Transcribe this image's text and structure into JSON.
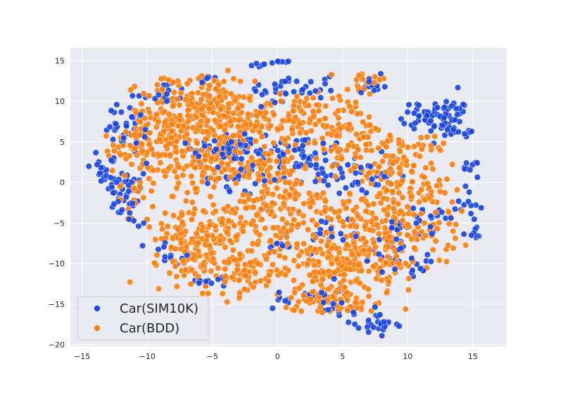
{
  "chart_data": {
    "type": "scatter",
    "title": "",
    "xlabel": "",
    "ylabel": "",
    "xlim": [
      -15.9,
      17.6
    ],
    "ylim": [
      -20.2,
      16.6
    ],
    "xticks": [
      -15,
      -10,
      -5,
      0,
      5,
      10,
      15
    ],
    "yticks": [
      -20,
      -15,
      -10,
      -5,
      0,
      5,
      10,
      15
    ],
    "grid": true,
    "legend_position": "lower-left",
    "series": [
      {
        "name": "Car(SIM10K)",
        "color": "#1a47e0",
        "clusters": [
          {
            "cx": -13.5,
            "cy": 1.5,
            "sx": 0.7,
            "sy": 1.0,
            "n": 22
          },
          {
            "cx": -11.5,
            "cy": -1.5,
            "sx": 0.8,
            "sy": 1.8,
            "n": 45
          },
          {
            "cx": -11.2,
            "cy": 6.5,
            "sx": 1.0,
            "sy": 1.6,
            "n": 40
          },
          {
            "cx": -8.8,
            "cy": 11.0,
            "sx": 1.0,
            "sy": 0.8,
            "n": 18
          },
          {
            "cx": -8.3,
            "cy": -8.7,
            "sx": 0.8,
            "sy": 0.8,
            "n": 10
          },
          {
            "cx": -5.5,
            "cy": 12.8,
            "sx": 0.5,
            "sy": 0.3,
            "n": 8
          },
          {
            "cx": -3.8,
            "cy": 4.3,
            "sx": 2.0,
            "sy": 1.1,
            "n": 55
          },
          {
            "cx": -3.2,
            "cy": 0.3,
            "sx": 1.4,
            "sy": 1.0,
            "n": 22
          },
          {
            "cx": -4.6,
            "cy": -12.2,
            "sx": 0.8,
            "sy": 0.4,
            "n": 12
          },
          {
            "cx": -1.2,
            "cy": 14.5,
            "sx": 0.5,
            "sy": 0.2,
            "n": 6
          },
          {
            "cx": 0.4,
            "cy": 14.9,
            "sx": 0.3,
            "sy": 0.1,
            "n": 6
          },
          {
            "cx": 0.2,
            "cy": 11.2,
            "sx": 1.2,
            "sy": 0.9,
            "n": 28
          },
          {
            "cx": 1.6,
            "cy": 3.0,
            "sx": 1.8,
            "sy": 1.5,
            "n": 55
          },
          {
            "cx": 0.2,
            "cy": -7.8,
            "sx": 0.4,
            "sy": 0.3,
            "n": 8
          },
          {
            "cx": 3.3,
            "cy": 11.6,
            "sx": 0.8,
            "sy": 0.6,
            "n": 10
          },
          {
            "cx": 7.5,
            "cy": 12.0,
            "sx": 0.7,
            "sy": 0.6,
            "n": 10
          },
          {
            "cx": 5.8,
            "cy": 1.0,
            "sx": 1.6,
            "sy": 1.2,
            "n": 45
          },
          {
            "cx": 2.5,
            "cy": -14.2,
            "sx": 1.4,
            "sy": 0.8,
            "n": 24
          },
          {
            "cx": 5.4,
            "cy": -15.6,
            "sx": 1.0,
            "sy": 0.5,
            "n": 14
          },
          {
            "cx": 7.7,
            "cy": -17.5,
            "sx": 0.7,
            "sy": 0.6,
            "n": 26
          },
          {
            "cx": 8.6,
            "cy": -8.5,
            "sx": 0.9,
            "sy": 1.0,
            "n": 22
          },
          {
            "cx": 9.5,
            "cy": -5.2,
            "sx": 0.6,
            "sy": 0.8,
            "n": 10
          },
          {
            "cx": 11.6,
            "cy": 8.2,
            "sx": 1.0,
            "sy": 0.8,
            "n": 42
          },
          {
            "cx": 13.3,
            "cy": 7.5,
            "sx": 0.8,
            "sy": 1.5,
            "n": 40
          },
          {
            "cx": 14.8,
            "cy": 1.8,
            "sx": 0.6,
            "sy": 0.4,
            "n": 9
          },
          {
            "cx": 14.5,
            "cy": -3.0,
            "sx": 0.5,
            "sy": 1.0,
            "n": 12
          },
          {
            "cx": 15.1,
            "cy": -6.3,
            "sx": 0.4,
            "sy": 0.6,
            "n": 8
          },
          {
            "cx": 11.8,
            "cy": -5.0,
            "sx": 0.9,
            "sy": 1.2,
            "n": 18
          },
          {
            "cx": 10.7,
            "cy": -10.5,
            "sx": 0.7,
            "sy": 0.9,
            "n": 12
          },
          {
            "cx": 3.8,
            "cy": -6.0,
            "sx": 1.5,
            "sy": 1.2,
            "n": 20
          }
        ]
      },
      {
        "name": "Car(BDD)",
        "color": "#ff7f0e",
        "clusters": [
          {
            "cx": -8.0,
            "cy": 6.5,
            "sx": 1.8,
            "sy": 3.0,
            "n": 210
          },
          {
            "cx": -5.0,
            "cy": 9.0,
            "sx": 1.6,
            "sy": 2.2,
            "n": 120
          },
          {
            "cx": -2.2,
            "cy": 6.8,
            "sx": 1.5,
            "sy": 1.2,
            "n": 60
          },
          {
            "cx": -1.0,
            "cy": 2.0,
            "sx": 1.8,
            "sy": 1.5,
            "n": 70
          },
          {
            "cx": 1.5,
            "cy": 8.5,
            "sx": 1.6,
            "sy": 1.4,
            "n": 55
          },
          {
            "cx": 5.0,
            "cy": 6.0,
            "sx": 1.6,
            "sy": 2.5,
            "n": 90
          },
          {
            "cx": 8.5,
            "cy": 2.5,
            "sx": 1.6,
            "sy": 2.0,
            "n": 60
          },
          {
            "cx": 11.0,
            "cy": 1.5,
            "sx": 1.5,
            "sy": 2.5,
            "n": 55
          },
          {
            "cx": 12.5,
            "cy": -5.5,
            "sx": 1.2,
            "sy": 2.0,
            "n": 35
          },
          {
            "cx": -11.0,
            "cy": 4.0,
            "sx": 1.2,
            "sy": 2.2,
            "n": 45
          },
          {
            "cx": -11.0,
            "cy": -2.0,
            "sx": 0.6,
            "sy": 1.2,
            "n": 12
          },
          {
            "cx": -6.5,
            "cy": -7.0,
            "sx": 1.5,
            "sy": 2.5,
            "n": 140
          },
          {
            "cx": -3.0,
            "cy": -10.5,
            "sx": 2.0,
            "sy": 1.8,
            "n": 100
          },
          {
            "cx": -2.5,
            "cy": -4.5,
            "sx": 1.8,
            "sy": 2.0,
            "n": 80
          },
          {
            "cx": 1.5,
            "cy": -2.5,
            "sx": 1.8,
            "sy": 1.8,
            "n": 70
          },
          {
            "cx": 3.5,
            "cy": -9.5,
            "sx": 2.0,
            "sy": 2.5,
            "n": 160
          },
          {
            "cx": 7.5,
            "cy": -9.0,
            "sx": 1.8,
            "sy": 2.5,
            "n": 120
          },
          {
            "cx": 9.5,
            "cy": -3.0,
            "sx": 1.5,
            "sy": 1.8,
            "n": 45
          },
          {
            "cx": 6.5,
            "cy": -4.0,
            "sx": 1.5,
            "sy": 1.5,
            "n": 50
          },
          {
            "cx": 4.0,
            "cy": -14.5,
            "sx": 1.8,
            "sy": 0.8,
            "n": 60
          },
          {
            "cx": 6.8,
            "cy": 12.0,
            "sx": 1.2,
            "sy": 0.8,
            "n": 20
          },
          {
            "cx": -5.5,
            "cy": 2.0,
            "sx": 1.5,
            "sy": 1.2,
            "n": 60
          }
        ]
      }
    ]
  },
  "legend": {
    "items": [
      {
        "label": "Car(SIM10K)",
        "color": "#1a47e0"
      },
      {
        "label": "Car(BDD)",
        "color": "#ff7f0e"
      }
    ]
  }
}
